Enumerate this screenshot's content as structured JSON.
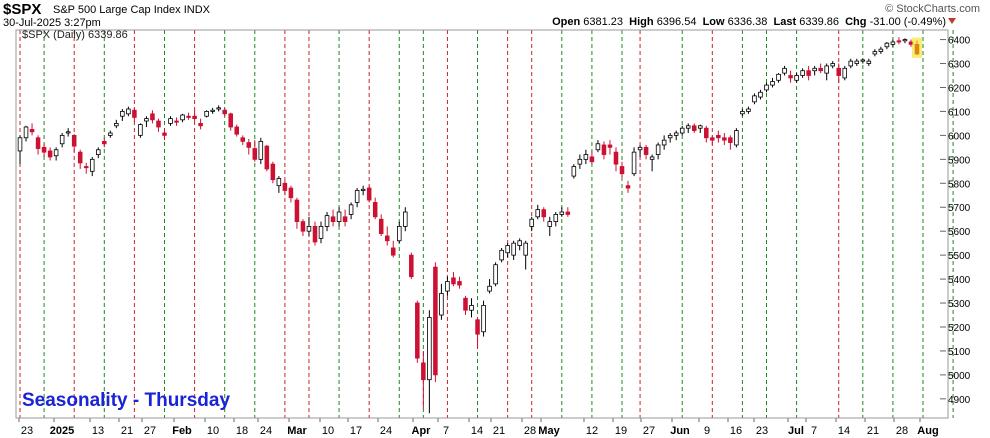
{
  "header": {
    "symbol": "$SPX",
    "name": "S&P 500 Large Cap Index",
    "exchange": "INDX",
    "datetime": "30-Jul-2025 3:27pm",
    "brand": "© StockCharts.com",
    "open_label": "Open",
    "open": "6381.23",
    "high_label": "High",
    "high": "6396.54",
    "low_label": "Low",
    "low": "6336.38",
    "last_label": "Last",
    "last": "6339.86",
    "chg_label": "Chg",
    "chg": "-31.00 (-0.49%)"
  },
  "legend": "$SPX (Daily) 6339.86",
  "annotation": "Seasonality - Thursday",
  "colors": {
    "up": "#000000",
    "down": "#cc1133",
    "red_line": "#cc2222",
    "green_line": "#1d8a1d",
    "title": "#1a23d6"
  },
  "chart_data": {
    "type": "candlestick",
    "title": "",
    "y_axis_side": "right",
    "ylim": [
      4820,
      6440
    ],
    "yticks": [
      4900,
      5000,
      5100,
      5200,
      5300,
      5400,
      5500,
      5600,
      5700,
      5800,
      5900,
      6000,
      6100,
      6200,
      6300,
      6400
    ],
    "x_tick_labels": [
      "23",
      "2025",
      "13",
      "21",
      "27",
      "Feb",
      "10",
      "18",
      "24",
      "Mar",
      "10",
      "17",
      "24",
      "Apr",
      "7",
      "14",
      "21",
      "28",
      "May",
      "12",
      "19",
      "27",
      "Jun",
      "9",
      "16",
      "23",
      "Jul",
      "7",
      "14",
      "21",
      "28",
      "Aug"
    ],
    "bold_tick_labels": [
      "2025",
      "Feb",
      "Mar",
      "Apr",
      "May",
      "Jun",
      "Jul",
      "Aug"
    ],
    "vertical_lines": {
      "red_indices": [
        0,
        9,
        19,
        29,
        44,
        48,
        58,
        71,
        81,
        85,
        103,
        115,
        136
      ],
      "green_indices": [
        4,
        14,
        24,
        34,
        39,
        53,
        63,
        67,
        76,
        90,
        95,
        100,
        110,
        120,
        124,
        129,
        140,
        145,
        150,
        155
      ]
    },
    "ohlc": [
      [
        5935,
        6000,
        5880,
        5990
      ],
      [
        5990,
        6040,
        5975,
        6035
      ],
      [
        6025,
        6050,
        6000,
        6015
      ],
      [
        5990,
        6000,
        5920,
        5945
      ],
      [
        5950,
        5965,
        5910,
        5930
      ],
      [
        5935,
        5950,
        5895,
        5910
      ],
      [
        5915,
        5950,
        5895,
        5940
      ],
      [
        5965,
        6010,
        5950,
        6000
      ],
      [
        6010,
        6030,
        5995,
        6015
      ],
      [
        6000,
        6005,
        5930,
        5955
      ],
      [
        5930,
        5940,
        5860,
        5885
      ],
      [
        5870,
        5885,
        5840,
        5865
      ],
      [
        5850,
        5910,
        5830,
        5900
      ],
      [
        5920,
        5950,
        5905,
        5940
      ],
      [
        5975,
        5990,
        5950,
        5965
      ],
      [
        6000,
        6020,
        5990,
        6010
      ],
      [
        6040,
        6065,
        6030,
        6050
      ],
      [
        6080,
        6110,
        6060,
        6100
      ],
      [
        6090,
        6120,
        6080,
        6110
      ],
      [
        6105,
        6115,
        6055,
        6075
      ],
      [
        6000,
        6050,
        5990,
        6045
      ],
      [
        6060,
        6080,
        6035,
        6070
      ],
      [
        6090,
        6105,
        6050,
        6065
      ],
      [
        6060,
        6070,
        6015,
        6035
      ],
      [
        6010,
        6030,
        5980,
        6000
      ],
      [
        6050,
        6080,
        6040,
        6070
      ],
      [
        6060,
        6075,
        6040,
        6055
      ],
      [
        6065,
        6090,
        6055,
        6085
      ],
      [
        6080,
        6095,
        6065,
        6075
      ],
      [
        6080,
        6105,
        6060,
        6070
      ],
      [
        6050,
        6070,
        6025,
        6040
      ],
      [
        6080,
        6105,
        6075,
        6100
      ],
      [
        6100,
        6115,
        6090,
        6105
      ],
      [
        6110,
        6125,
        6100,
        6115
      ],
      [
        6105,
        6115,
        6080,
        6090
      ],
      [
        6090,
        6095,
        6020,
        6035
      ],
      [
        6035,
        6045,
        5995,
        6005
      ],
      [
        5990,
        6000,
        5960,
        5975
      ],
      [
        5970,
        5985,
        5920,
        5950
      ],
      [
        5945,
        5980,
        5890,
        5900
      ],
      [
        5900,
        5990,
        5880,
        5975
      ],
      [
        5955,
        5960,
        5850,
        5860
      ],
      [
        5880,
        5890,
        5800,
        5815
      ],
      [
        5790,
        5830,
        5760,
        5820
      ],
      [
        5800,
        5810,
        5750,
        5770
      ],
      [
        5780,
        5790,
        5720,
        5740
      ],
      [
        5730,
        5740,
        5610,
        5640
      ],
      [
        5640,
        5650,
        5580,
        5600
      ],
      [
        5600,
        5660,
        5580,
        5620
      ],
      [
        5620,
        5640,
        5540,
        5555
      ],
      [
        5570,
        5640,
        5550,
        5620
      ],
      [
        5620,
        5680,
        5600,
        5665
      ],
      [
        5660,
        5690,
        5620,
        5640
      ],
      [
        5640,
        5700,
        5620,
        5680
      ],
      [
        5660,
        5690,
        5620,
        5640
      ],
      [
        5670,
        5720,
        5650,
        5710
      ],
      [
        5720,
        5780,
        5700,
        5770
      ],
      [
        5770,
        5790,
        5750,
        5775
      ],
      [
        5780,
        5790,
        5720,
        5730
      ],
      [
        5720,
        5740,
        5650,
        5660
      ],
      [
        5650,
        5670,
        5580,
        5590
      ],
      [
        5580,
        5620,
        5540,
        5560
      ],
      [
        5530,
        5560,
        5490,
        5500
      ],
      [
        5560,
        5640,
        5550,
        5620
      ],
      [
        5620,
        5700,
        5600,
        5680
      ],
      [
        5500,
        5510,
        5400,
        5410
      ],
      [
        5300,
        5310,
        5050,
        5070
      ],
      [
        5050,
        5100,
        4860,
        4980
      ],
      [
        4980,
        5270,
        4840,
        5240
      ],
      [
        5450,
        5470,
        4970,
        5000
      ],
      [
        5250,
        5380,
        5230,
        5340
      ],
      [
        5350,
        5410,
        5330,
        5390
      ],
      [
        5405,
        5430,
        5370,
        5380
      ],
      [
        5390,
        5410,
        5360,
        5375
      ],
      [
        5320,
        5330,
        5250,
        5270
      ],
      [
        5270,
        5320,
        5240,
        5290
      ],
      [
        5230,
        5240,
        5110,
        5170
      ],
      [
        5180,
        5310,
        5160,
        5290
      ],
      [
        5350,
        5400,
        5340,
        5370
      ],
      [
        5380,
        5470,
        5370,
        5460
      ],
      [
        5480,
        5530,
        5470,
        5520
      ],
      [
        5510,
        5550,
        5490,
        5540
      ],
      [
        5500,
        5560,
        5480,
        5550
      ],
      [
        5540,
        5570,
        5520,
        5560
      ],
      [
        5500,
        5560,
        5440,
        5550
      ],
      [
        5620,
        5660,
        5600,
        5650
      ],
      [
        5660,
        5710,
        5650,
        5690
      ],
      [
        5690,
        5700,
        5640,
        5660
      ],
      [
        5620,
        5660,
        5580,
        5640
      ],
      [
        5640,
        5680,
        5620,
        5670
      ],
      [
        5670,
        5700,
        5660,
        5680
      ],
      [
        5680,
        5700,
        5660,
        5670
      ],
      [
        5830,
        5880,
        5820,
        5870
      ],
      [
        5880,
        5920,
        5860,
        5900
      ],
      [
        5900,
        5940,
        5880,
        5920
      ],
      [
        5910,
        5935,
        5880,
        5890
      ],
      [
        5940,
        5980,
        5930,
        5965
      ],
      [
        5960,
        5975,
        5900,
        5920
      ],
      [
        5960,
        5980,
        5920,
        5950
      ],
      [
        5930,
        5950,
        5850,
        5880
      ],
      [
        5870,
        5890,
        5820,
        5840
      ],
      [
        5790,
        5810,
        5760,
        5780
      ],
      [
        5840,
        5950,
        5830,
        5930
      ],
      [
        5940,
        5960,
        5910,
        5950
      ],
      [
        5950,
        5960,
        5900,
        5920
      ],
      [
        5900,
        5920,
        5850,
        5910
      ],
      [
        5920,
        5970,
        5900,
        5960
      ],
      [
        5960,
        6000,
        5940,
        5980
      ],
      [
        5990,
        6010,
        5970,
        6000
      ],
      [
        6000,
        6020,
        5980,
        6010
      ],
      [
        6010,
        6040,
        6000,
        6030
      ],
      [
        6030,
        6050,
        6010,
        6040
      ],
      [
        6040,
        6050,
        6010,
        6020
      ],
      [
        6030,
        6045,
        6010,
        6040
      ],
      [
        6030,
        6040,
        5970,
        5990
      ],
      [
        5990,
        6000,
        5960,
        5980
      ],
      [
        6000,
        6020,
        5970,
        5990
      ],
      [
        5990,
        6010,
        5960,
        5980
      ],
      [
        5990,
        6000,
        5940,
        5970
      ],
      [
        5960,
        6030,
        5950,
        6020
      ],
      [
        6090,
        6110,
        6080,
        6100
      ],
      [
        6100,
        6120,
        6090,
        6110
      ],
      [
        6140,
        6175,
        6130,
        6165
      ],
      [
        6160,
        6190,
        6150,
        6180
      ],
      [
        6190,
        6220,
        6180,
        6210
      ],
      [
        6210,
        6240,
        6200,
        6225
      ],
      [
        6230,
        6260,
        6220,
        6255
      ],
      [
        6260,
        6290,
        6250,
        6280
      ],
      [
        6250,
        6270,
        6220,
        6240
      ],
      [
        6230,
        6260,
        6220,
        6250
      ],
      [
        6250,
        6280,
        6240,
        6270
      ],
      [
        6270,
        6290,
        6230,
        6250
      ],
      [
        6270,
        6290,
        6250,
        6280
      ],
      [
        6280,
        6300,
        6260,
        6270
      ],
      [
        6260,
        6300,
        6230,
        6290
      ],
      [
        6290,
        6310,
        6280,
        6300
      ],
      [
        6280,
        6300,
        6220,
        6250
      ],
      [
        6240,
        6290,
        6230,
        6280
      ],
      [
        6290,
        6320,
        6280,
        6310
      ],
      [
        6300,
        6320,
        6290,
        6310
      ],
      [
        6310,
        6320,
        6300,
        6315
      ],
      [
        6300,
        6320,
        6290,
        6310
      ],
      [
        6340,
        6360,
        6330,
        6350
      ],
      [
        6350,
        6370,
        6340,
        6360
      ],
      [
        6370,
        6390,
        6360,
        6385
      ],
      [
        6380,
        6400,
        6370,
        6390
      ],
      [
        6395,
        6410,
        6380,
        6390
      ],
      [
        6395,
        6405,
        6385,
        6400
      ],
      [
        6390,
        6400,
        6370,
        6380
      ],
      [
        6380,
        6396,
        6336,
        6340
      ]
    ]
  }
}
